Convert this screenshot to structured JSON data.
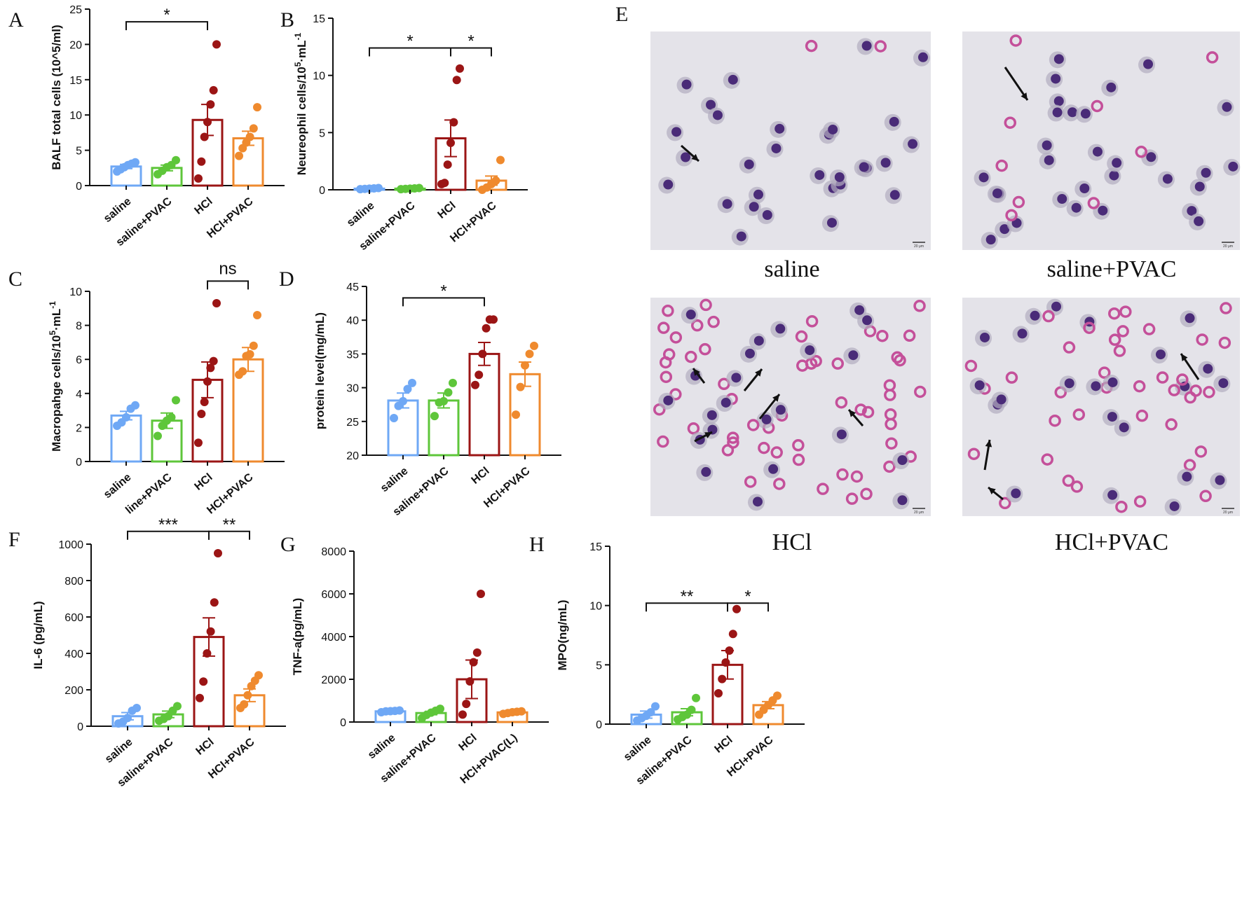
{
  "colors": {
    "saline": "#6fa8f5",
    "saline_pvac": "#5ec63a",
    "hcl": "#9b1515",
    "hcl_pvac": "#ef8a2e",
    "axis": "#111111",
    "micro_bg": "#e4e3e9",
    "neut": "#c4509a",
    "nucleus": "#4a2b78",
    "cytoplasm": "#b2acbf"
  },
  "chart_data": [
    {
      "id": "A",
      "panel_label": "A",
      "type": "bar",
      "ylabel": "BALF total cells (10^5/ml)",
      "ylim": [
        0,
        25
      ],
      "yticks": [
        0,
        5,
        10,
        15,
        20,
        25
      ],
      "categories": [
        "saline",
        "saline+PVAC",
        "HCl",
        "HCl+PVAC"
      ],
      "means": [
        2.7,
        2.5,
        9.3,
        6.7
      ],
      "sem": [
        0.3,
        0.4,
        2.2,
        1.0
      ],
      "points": [
        [
          2.0,
          2.3,
          2.6,
          2.9,
          3.1,
          3.3
        ],
        [
          1.6,
          2.1,
          2.6,
          2.9,
          3.6
        ],
        [
          1.0,
          3.4,
          6.9,
          9.0,
          11.5,
          13.5,
          20.0
        ],
        [
          4.2,
          5.3,
          6.1,
          6.9,
          8.1,
          11.1
        ]
      ],
      "brackets": [
        {
          "from": 0,
          "to": 2,
          "y": 23.2,
          "label": "*"
        }
      ]
    },
    {
      "id": "B",
      "panel_label": "B",
      "type": "bar",
      "ylabel_main": "Neureophil cells/10",
      "ylabel_sup1": "5",
      "ylabel_mid": "·mL",
      "ylabel_sup2": "-1",
      "ylim": [
        0,
        15
      ],
      "yticks": [
        0,
        5,
        10,
        15
      ],
      "categories": [
        "saline",
        "saline+PVAC",
        "HCl",
        "HCl+PVAC"
      ],
      "means": [
        0.1,
        0.1,
        4.5,
        0.8
      ],
      "sem": [
        0.05,
        0.05,
        1.6,
        0.4
      ],
      "points": [
        [
          0.05,
          0.08,
          0.1,
          0.12,
          0.15
        ],
        [
          0.05,
          0.08,
          0.1,
          0.12,
          0.15
        ],
        [
          0.5,
          0.6,
          2.2,
          4.1,
          5.9,
          9.6,
          10.6
        ],
        [
          0.0,
          0.2,
          0.5,
          0.8,
          2.6
        ]
      ],
      "brackets": [
        {
          "from": 0,
          "to": 2,
          "y": 12.4,
          "label": "*"
        },
        {
          "from": 2,
          "to": 3,
          "y": 12.4,
          "label": "*"
        }
      ]
    },
    {
      "id": "C",
      "panel_label": "C",
      "type": "bar",
      "ylabel_main": "Macropahge cells/10",
      "ylabel_sup1": "5",
      "ylabel_mid": "·mL",
      "ylabel_sup2": "-1",
      "ylim": [
        0,
        10
      ],
      "yticks": [
        0,
        2,
        4,
        6,
        8,
        10
      ],
      "categories": [
        "saline",
        "saline+PVAC",
        "HCl",
        "HCl+PVAC"
      ],
      "cat_display": [
        "saline",
        "line+PVAC",
        "HCl",
        "HCl+PVAC"
      ],
      "means": [
        2.7,
        2.4,
        4.8,
        6.0
      ],
      "sem": [
        0.25,
        0.45,
        1.05,
        0.7
      ],
      "points": [
        [
          2.1,
          2.3,
          2.6,
          3.1,
          3.3
        ],
        [
          1.5,
          2.1,
          2.4,
          2.6,
          3.6
        ],
        [
          1.1,
          2.8,
          3.5,
          4.7,
          5.5,
          5.9,
          9.3
        ],
        [
          5.1,
          5.3,
          6.2,
          6.3,
          6.8,
          8.6
        ]
      ],
      "brackets": [
        {
          "from": 2,
          "to": 3,
          "y": 10.6,
          "label": "ns"
        }
      ]
    },
    {
      "id": "D",
      "panel_label": "D",
      "type": "bar",
      "ylabel": "protein level(mg/mL)",
      "ylim": [
        20,
        45
      ],
      "yticks": [
        20,
        25,
        30,
        35,
        40,
        45
      ],
      "categories": [
        "saline",
        "saline+PVAC",
        "HCl",
        "HCl+PVAC"
      ],
      "means": [
        28.1,
        28.1,
        35.0,
        32.0
      ],
      "sem": [
        1.1,
        1.1,
        1.7,
        1.8
      ],
      "points": [
        [
          25.5,
          27.3,
          28.0,
          29.8,
          30.7
        ],
        [
          25.8,
          27.8,
          28.0,
          29.3,
          30.7
        ],
        [
          30.4,
          31.9,
          35.0,
          38.8,
          40.1,
          40.1
        ],
        [
          26.0,
          30.1,
          33.3,
          35.0,
          36.2
        ]
      ],
      "brackets": [
        {
          "from": 0,
          "to": 2,
          "y": 43.3,
          "label": "*"
        }
      ]
    },
    {
      "id": "F",
      "panel_label": "F",
      "type": "bar",
      "ylabel": "IL-6 (pg/mL)",
      "ylim": [
        0,
        1000
      ],
      "yticks": [
        0,
        200,
        400,
        600,
        800,
        1000
      ],
      "categories": [
        "saline",
        "saline+PVAC",
        "HCl",
        "HCl+PVAC"
      ],
      "means": [
        55,
        65,
        490,
        170
      ],
      "sem": [
        20,
        18,
        105,
        35
      ],
      "points": [
        [
          15,
          25,
          45,
          85,
          100
        ],
        [
          30,
          40,
          55,
          85,
          110
        ],
        [
          155,
          245,
          400,
          520,
          680,
          950
        ],
        [
          100,
          120,
          170,
          220,
          250,
          280
        ]
      ],
      "brackets": [
        {
          "from": 0,
          "to": 2,
          "y": 1070,
          "label": "***"
        },
        {
          "from": 2,
          "to": 3,
          "y": 1070,
          "label": "**"
        }
      ]
    },
    {
      "id": "G",
      "panel_label": "G",
      "type": "bar",
      "ylabel": "TNF-a(pg/mL)",
      "ylim": [
        0,
        8000
      ],
      "yticks": [
        0,
        2000,
        4000,
        6000,
        8000
      ],
      "categories": [
        "saline",
        "saline+PVAC",
        "HCl",
        "HCl+PVAC(L)"
      ],
      "means": [
        500,
        420,
        2000,
        450
      ],
      "sem": [
        20,
        80,
        900,
        30
      ],
      "points": [
        [
          460,
          500,
          510,
          520,
          540
        ],
        [
          180,
          330,
          440,
          530,
          620
        ],
        [
          350,
          850,
          1900,
          2800,
          3250,
          6000
        ],
        [
          380,
          420,
          460,
          480,
          500
        ]
      ],
      "brackets": []
    },
    {
      "id": "H",
      "panel_label": "H",
      "type": "bar",
      "ylabel": "MPO(ng/mL)",
      "ylim": [
        0,
        15
      ],
      "yticks": [
        0,
        5,
        10,
        15
      ],
      "categories": [
        "saline",
        "saline+PVAC",
        "HCl",
        "HCl+PVAC"
      ],
      "means": [
        0.8,
        1.0,
        5.0,
        1.6
      ],
      "sem": [
        0.3,
        0.3,
        1.2,
        0.3
      ],
      "points": [
        [
          0.3,
          0.5,
          0.7,
          1.0,
          1.5
        ],
        [
          0.4,
          0.6,
          0.8,
          1.2,
          2.2
        ],
        [
          2.6,
          3.8,
          5.2,
          6.2,
          7.6,
          9.7
        ],
        [
          0.8,
          1.2,
          1.6,
          2.0,
          2.4
        ]
      ],
      "brackets": [
        {
          "from": 0,
          "to": 2,
          "y": 10.2,
          "label": "**"
        },
        {
          "from": 2,
          "to": 3,
          "y": 10.2,
          "label": "*"
        }
      ]
    }
  ],
  "micrographs": {
    "panel_label": "E",
    "scale_bar_text": "20 μm",
    "captions": [
      "saline",
      "saline+PVAC",
      "HCl",
      "HCl+PVAC"
    ]
  }
}
